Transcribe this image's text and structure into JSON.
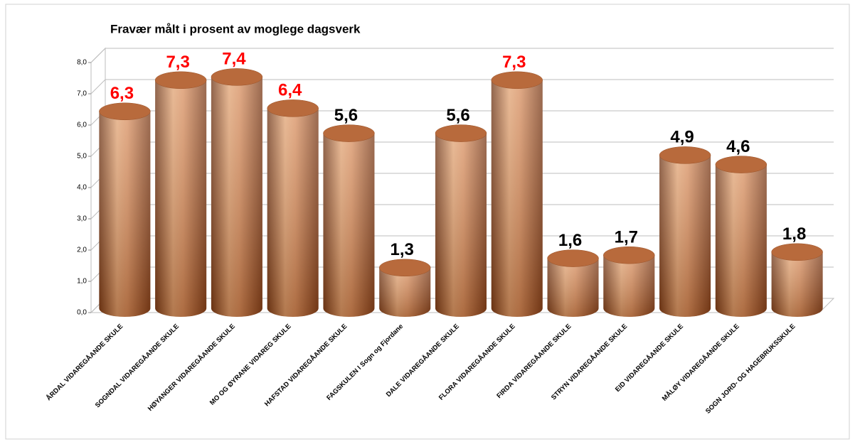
{
  "chart_data": {
    "type": "bar3d",
    "title": "Fravær målt i prosent av moglege dagsverk",
    "categories": [
      "ÅRDAL VIDAREGÅANDE SKULE",
      "SOGNDAL VIDAREGÅANDE SKULE",
      "HØYANGER VIDAREGÅANDE SKULE",
      "MO OG ØYRANE VIDAREG SKULE",
      "HAFSTAD VIDAREGÅANDE SKULE",
      "FAGSKULEN I Sogn og Fjordane",
      "DALE VIDAREGÅANDE SKULE",
      "FLORA VIDAREGÅANDE SKULE",
      "FIRDA VIDAREGÅANDE SKULE",
      "STRYN VIDAREGÅANDE SKULE",
      "EID VIDAREGÅANDE SKULE",
      "MÅLØY VIDAREGÅANDE SKULE",
      "SOGN JORD- OG HAGEBRUKSSKULE"
    ],
    "values": [
      6.3,
      7.3,
      7.4,
      6.4,
      5.6,
      1.3,
      5.6,
      7.3,
      1.6,
      1.7,
      4.9,
      4.6,
      1.8
    ],
    "value_labels": [
      "6,3",
      "7,3",
      "7,4",
      "6,4",
      "5,6",
      "1,3",
      "5,6",
      "7,3",
      "1,6",
      "1,7",
      "4,9",
      "4,6",
      "1,8"
    ],
    "value_label_colors": [
      "#ff0000",
      "#ff0000",
      "#ff0000",
      "#ff0000",
      "#000000",
      "#000000",
      "#000000",
      "#ff0000",
      "#000000",
      "#000000",
      "#000000",
      "#000000",
      "#000000"
    ],
    "color": "#c8743e",
    "ylim": [
      0,
      8
    ],
    "yticks": [
      {
        "value": 0,
        "label": "0,0"
      },
      {
        "value": 1,
        "label": "1,0"
      },
      {
        "value": 2,
        "label": "2,0"
      },
      {
        "value": 3,
        "label": "3,0"
      },
      {
        "value": 4,
        "label": "4,0"
      },
      {
        "value": 5,
        "label": "5,0"
      },
      {
        "value": 6,
        "label": "6,0"
      },
      {
        "value": 7,
        "label": "7,0"
      },
      {
        "value": 8,
        "label": "8,0"
      }
    ],
    "grid": true
  }
}
